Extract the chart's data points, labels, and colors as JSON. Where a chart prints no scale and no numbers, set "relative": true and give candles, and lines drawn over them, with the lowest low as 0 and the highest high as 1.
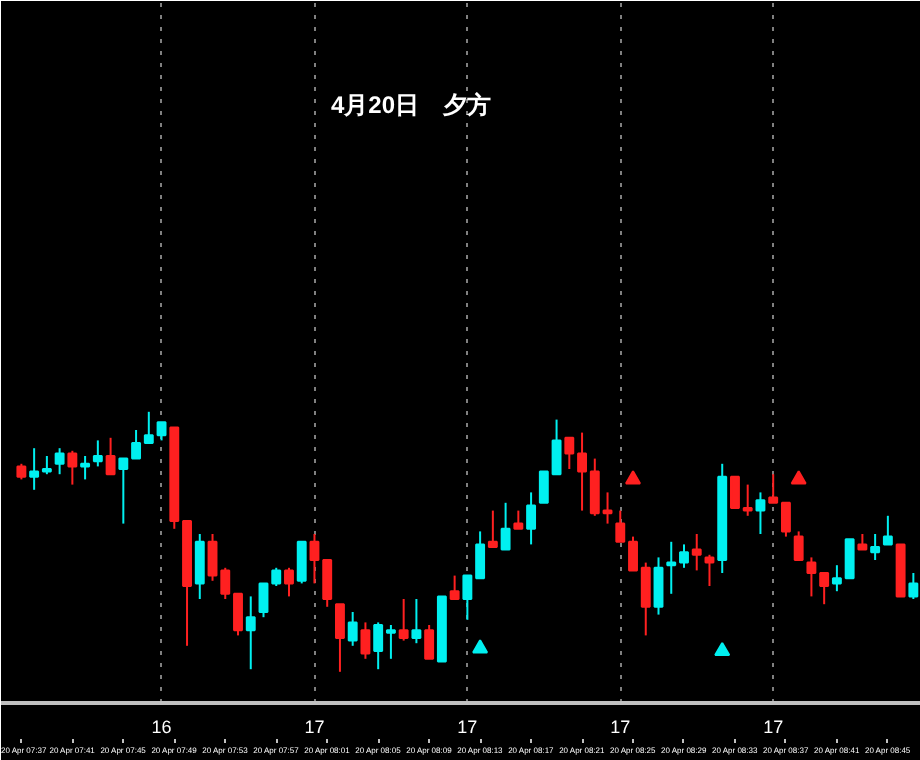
{
  "chart_data": {
    "type": "candlestick",
    "title": "4月20日　夕方",
    "relative": true,
    "categories": [
      "20 Apr 07:37",
      null,
      null,
      null,
      "20 Apr 07:41",
      null,
      null,
      null,
      "20 Apr 07:45",
      null,
      null,
      null,
      "20 Apr 07:49",
      null,
      null,
      null,
      "20 Apr 07:53",
      null,
      null,
      null,
      "20 Apr 07:57",
      null,
      null,
      null,
      "20 Apr 08:01",
      null,
      null,
      null,
      "20 Apr 08:05",
      null,
      null,
      null,
      "20 Apr 08:09",
      null,
      null,
      null,
      "20 Apr 08:13",
      null,
      null,
      null,
      "20 Apr 08:17",
      null,
      null,
      null,
      "20 Apr 08:21",
      null,
      null,
      null,
      "20 Apr 08:25",
      null,
      null,
      null,
      "20 Apr 08:29",
      null,
      null,
      null,
      "20 Apr 08:33",
      null,
      null,
      null,
      "20 Apr 08:37",
      null,
      null,
      null,
      "20 Apr 08:41",
      null,
      null,
      null,
      "20 Apr 08:45",
      null,
      null
    ],
    "ohlc": [
      [
        0.79,
        0.8,
        0.74,
        0.75
      ],
      [
        0.75,
        0.86,
        0.7,
        0.77
      ],
      [
        0.77,
        0.83,
        0.76,
        0.78
      ],
      [
        0.8,
        0.86,
        0.76,
        0.84
      ],
      [
        0.84,
        0.85,
        0.72,
        0.79
      ],
      [
        0.79,
        0.83,
        0.74,
        0.8
      ],
      [
        0.81,
        0.89,
        0.79,
        0.83
      ],
      [
        0.83,
        0.9,
        0.76,
        0.76
      ],
      [
        0.78,
        0.82,
        0.57,
        0.82
      ],
      [
        0.82,
        0.93,
        0.82,
        0.88
      ],
      [
        0.88,
        1,
        0.88,
        0.91
      ],
      [
        0.91,
        0.96,
        0.89,
        0.96
      ],
      [
        0.94,
        0.94,
        0.55,
        0.58
      ],
      [
        0.58,
        0.58,
        0.1,
        0.33
      ],
      [
        0.34,
        0.53,
        0.28,
        0.5
      ],
      [
        0.5,
        0.53,
        0.35,
        0.37
      ],
      [
        0.39,
        0.4,
        0.28,
        0.3
      ],
      [
        0.3,
        0.3,
        0.14,
        0.16
      ],
      [
        0.16,
        0.29,
        0.01,
        0.21
      ],
      [
        0.23,
        0.34,
        0.21,
        0.34
      ],
      [
        0.34,
        0.4,
        0.33,
        0.39
      ],
      [
        0.39,
        0.4,
        0.29,
        0.34
      ],
      [
        0.35,
        0.5,
        0.34,
        0.5
      ],
      [
        0.5,
        0.53,
        0.34,
        0.43
      ],
      [
        0.43,
        0.43,
        0.25,
        0.28
      ],
      [
        0.26,
        0.26,
        0,
        0.13
      ],
      [
        0.12,
        0.23,
        0.1,
        0.19
      ],
      [
        0.16,
        0.19,
        0.05,
        0.07
      ],
      [
        0.08,
        0.19,
        0.01,
        0.18
      ],
      [
        0.15,
        0.18,
        0.05,
        0.16
      ],
      [
        0.16,
        0.28,
        0.12,
        0.13
      ],
      [
        0.13,
        0.28,
        0.11,
        0.16
      ],
      [
        0.16,
        0.18,
        0.05,
        0.05
      ],
      [
        0.04,
        0.29,
        0.04,
        0.29
      ],
      [
        0.31,
        0.37,
        0.28,
        0.28
      ],
      [
        0.28,
        0.37,
        0.2,
        0.37
      ],
      [
        0.36,
        0.54,
        0.36,
        0.49
      ],
      [
        0.5,
        0.62,
        0.48,
        0.48
      ],
      [
        0.47,
        0.65,
        0.47,
        0.55
      ],
      [
        0.57,
        0.62,
        0.55,
        0.55
      ],
      [
        0.55,
        0.69,
        0.49,
        0.64
      ],
      [
        0.65,
        0.77,
        0.65,
        0.77
      ],
      [
        0.76,
        0.97,
        0.76,
        0.89
      ],
      [
        0.9,
        0.9,
        0.78,
        0.84
      ],
      [
        0.84,
        0.92,
        0.62,
        0.77
      ],
      [
        0.77,
        0.82,
        0.6,
        0.61
      ],
      [
        0.62,
        0.69,
        0.57,
        0.61
      ],
      [
        0.57,
        0.62,
        0.5,
        0.5
      ],
      [
        0.5,
        0.52,
        0.39,
        0.39
      ],
      [
        0.4,
        0.42,
        0.14,
        0.25
      ],
      [
        0.25,
        0.44,
        0.22,
        0.4
      ],
      [
        0.41,
        0.5,
        0.3,
        0.42
      ],
      [
        0.42,
        0.49,
        0.4,
        0.46
      ],
      [
        0.47,
        0.53,
        0.39,
        0.45
      ],
      [
        0.44,
        0.45,
        0.33,
        0.42
      ],
      [
        0.43,
        0.8,
        0.38,
        0.75
      ],
      [
        0.75,
        0.75,
        0.63,
        0.63
      ],
      [
        0.63,
        0.72,
        0.6,
        0.62
      ],
      [
        0.62,
        0.69,
        0.53,
        0.66
      ],
      [
        0.67,
        0.76,
        0.65,
        0.65
      ],
      [
        0.65,
        0.65,
        0.52,
        0.54
      ],
      [
        0.52,
        0.54,
        0.43,
        0.43
      ],
      [
        0.42,
        0.44,
        0.29,
        0.38
      ],
      [
        0.38,
        0.38,
        0.26,
        0.33
      ],
      [
        0.34,
        0.41,
        0.31,
        0.36
      ],
      [
        0.36,
        0.51,
        0.36,
        0.51
      ],
      [
        0.49,
        0.53,
        0.47,
        0.47
      ],
      [
        0.46,
        0.53,
        0.43,
        0.48
      ],
      [
        0.49,
        0.6,
        0.49,
        0.52
      ],
      [
        0.49,
        0.49,
        0.29,
        0.29
      ],
      [
        0.29,
        0.38,
        0.28,
        0.34
      ]
    ],
    "colors": [
      "#ff2020",
      "#00f0f0",
      "#00f0f0",
      "#00f0f0",
      "#ff2020",
      "#00f0f0",
      "#00f0f0",
      "#ff2020",
      "#00f0f0",
      "#00f0f0",
      "#00f0f0",
      "#00f0f0",
      "#ff2020",
      "#ff2020",
      "#00f0f0",
      "#ff2020",
      "#ff2020",
      "#ff2020",
      "#00f0f0",
      "#00f0f0",
      "#00f0f0",
      "#ff2020",
      "#00f0f0",
      "#ff2020",
      "#ff2020",
      "#ff2020",
      "#00f0f0",
      "#ff2020",
      "#00f0f0",
      "#00f0f0",
      "#ff2020",
      "#00f0f0",
      "#ff2020",
      "#00f0f0",
      "#ff2020",
      "#00f0f0",
      "#00f0f0",
      "#ff2020",
      "#00f0f0",
      "#ff2020",
      "#00f0f0",
      "#00f0f0",
      "#00f0f0",
      "#ff2020",
      "#ff2020",
      "#ff2020",
      "#ff2020",
      "#ff2020",
      "#ff2020",
      "#ff2020",
      "#00f0f0",
      "#00f0f0",
      "#00f0f0",
      "#ff2020",
      "#ff2020",
      "#00f0f0",
      "#ff2020",
      "#ff2020",
      "#00f0f0",
      "#ff2020",
      "#ff2020",
      "#ff2020",
      "#ff2020",
      "#ff2020",
      "#00f0f0",
      "#00f0f0",
      "#ff2020",
      "#00f0f0",
      "#00f0f0",
      "#ff2020",
      "#00f0f0"
    ],
    "series": [
      {
        "type": "scatter",
        "color": "#00f0f0",
        "marker": "triangle",
        "values": [
          null,
          null,
          null,
          null,
          null,
          null,
          null,
          null,
          null,
          null,
          null,
          null,
          null,
          null,
          null,
          null,
          null,
          null,
          null,
          null,
          null,
          null,
          null,
          null,
          null,
          null,
          null,
          null,
          null,
          null,
          null,
          null,
          null,
          null,
          null,
          null,
          0.09,
          null,
          null,
          null,
          null,
          null,
          null,
          null,
          null,
          null,
          null,
          null,
          null,
          null,
          null,
          null,
          null,
          null,
          null,
          0.08,
          null,
          null,
          null,
          null,
          null,
          null,
          null,
          null,
          null,
          null,
          null,
          null,
          null,
          null,
          null
        ]
      },
      {
        "type": "scatter",
        "color": "#ff2020",
        "marker": "triangle",
        "values": [
          null,
          null,
          null,
          null,
          null,
          null,
          null,
          null,
          null,
          null,
          null,
          null,
          null,
          null,
          null,
          null,
          null,
          null,
          null,
          null,
          null,
          null,
          null,
          null,
          null,
          null,
          null,
          null,
          null,
          null,
          null,
          null,
          null,
          null,
          null,
          null,
          null,
          null,
          null,
          null,
          null,
          null,
          null,
          null,
          null,
          null,
          null,
          null,
          0.74,
          null,
          null,
          null,
          null,
          null,
          null,
          null,
          null,
          null,
          null,
          null,
          null,
          0.74,
          null,
          null,
          null,
          null,
          null,
          null,
          null,
          null,
          null
        ]
      }
    ],
    "grid": "x",
    "annotations": [
      "16",
      "17",
      "17",
      "17",
      "17"
    ]
  }
}
